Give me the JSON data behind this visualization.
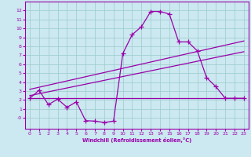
{
  "xlabel": "Windchill (Refroidissement éolien,°C)",
  "xlim": [
    -0.5,
    23.5
  ],
  "ylim": [
    -1.2,
    13
  ],
  "xticks": [
    0,
    1,
    2,
    3,
    4,
    5,
    6,
    7,
    8,
    9,
    10,
    11,
    12,
    13,
    14,
    15,
    16,
    17,
    18,
    19,
    20,
    21,
    22,
    23
  ],
  "yticks": [
    0,
    1,
    2,
    3,
    4,
    5,
    6,
    7,
    8,
    9,
    10,
    11,
    12
  ],
  "ytick_labels": [
    "-0",
    "1",
    "2",
    "3",
    "4",
    "5",
    "6",
    "7",
    "8",
    "9",
    "10",
    "11",
    "12"
  ],
  "bg_color": "#cce8f0",
  "line_color": "#9900aa",
  "grid_color": "#99cccc",
  "series1_x": [
    0,
    1,
    2,
    3,
    4,
    5,
    6,
    7,
    8,
    9,
    10,
    11,
    12,
    13,
    14,
    15,
    16,
    17,
    18,
    19,
    20,
    21,
    22,
    23
  ],
  "series1_y": [
    2.2,
    3.1,
    1.5,
    2.1,
    1.2,
    1.8,
    -0.3,
    -0.35,
    -0.5,
    -0.35,
    7.2,
    9.3,
    10.2,
    11.9,
    11.9,
    11.6,
    8.5,
    8.5,
    7.5,
    4.5,
    3.5,
    2.2,
    2.2,
    2.2
  ],
  "series2_x": [
    0,
    16,
    22,
    23
  ],
  "series2_y": [
    2.2,
    2.2,
    2.2,
    2.2
  ],
  "series3_x": [
    0,
    23
  ],
  "series3_y": [
    2.5,
    7.4
  ],
  "series4_x": [
    0,
    23
  ],
  "series4_y": [
    3.2,
    8.6
  ],
  "marker": "+",
  "markersize": 4,
  "linewidth": 0.9
}
